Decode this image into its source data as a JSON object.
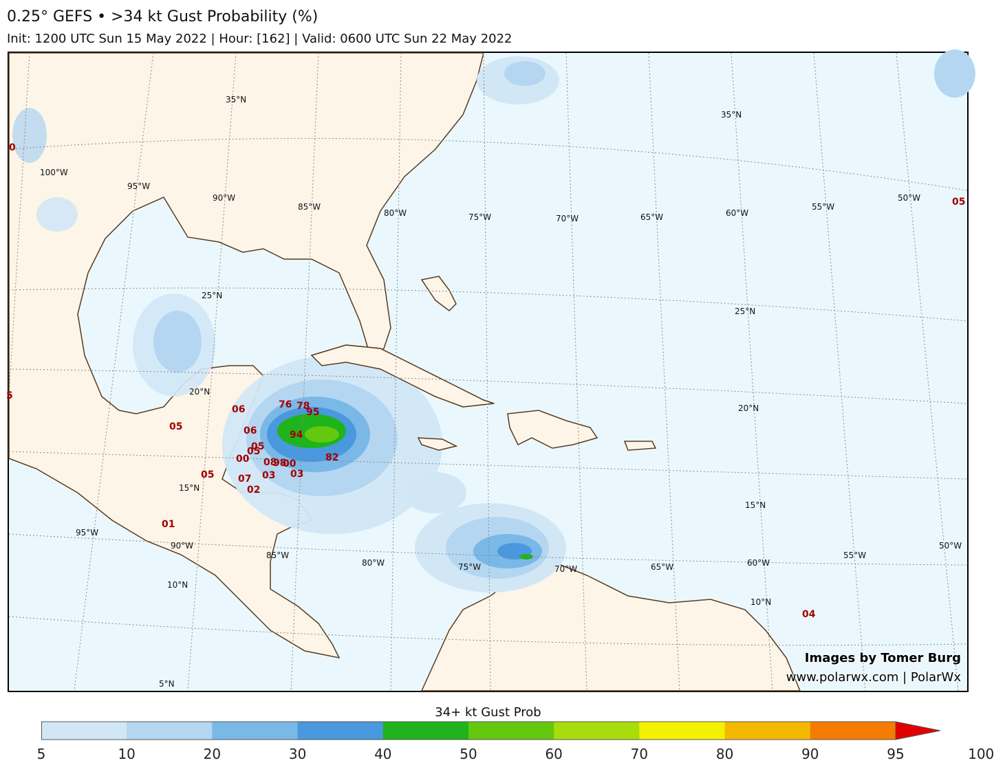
{
  "header": {
    "title": "0.25° GEFS • >34 kt Gust Probability (%)",
    "subtitle": "Init: 1200 UTC Sun 15 May 2022 | Hour: [162] | Valid: 0600 UTC Sun 22 May 2022"
  },
  "map": {
    "region": "Gulf of Mexico, Caribbean and western Atlantic",
    "colors": {
      "ocean": "#eaf8fd",
      "land": "#fdf5e8",
      "coast": "#5a3a1e",
      "grid": "#888888"
    },
    "lat_labels": [
      "35°N",
      "35°N",
      "25°N",
      "25°N",
      "20°N",
      "20°N",
      "15°N",
      "15°N",
      "10°N",
      "10°N",
      "5°N"
    ],
    "lon_labels": [
      "100°W",
      "95°W",
      "90°W",
      "85°W",
      "80°W",
      "75°W",
      "70°W",
      "65°W",
      "60°W",
      "55°W",
      "50°W",
      "95°W",
      "90°W",
      "85°W",
      "80°W",
      "75°W",
      "70°W",
      "65°W",
      "60°W",
      "55°W",
      "50°W"
    ],
    "max_labels": [
      "76",
      "78",
      "95",
      "94",
      "82",
      "06",
      "06",
      "05",
      "05",
      "00",
      "08",
      "98",
      "00",
      "07",
      "03",
      "03",
      "02",
      "05",
      "05",
      "01",
      "04",
      "05",
      "0",
      "5"
    ]
  },
  "credit": {
    "line1": "Images by Tomer Burg",
    "line2": "www.polarwx.com | PolarWx"
  },
  "colorbar": {
    "title": "34+ kt Gust Prob",
    "ticks": [
      "5",
      "10",
      "20",
      "30",
      "40",
      "50",
      "60",
      "70",
      "80",
      "90",
      "95",
      "100"
    ],
    "colors": [
      "#d2e7f6",
      "#b4d6f0",
      "#7ab8e8",
      "#4a98de",
      "#1fb31c",
      "#64c80f",
      "#a8dc0c",
      "#f2f200",
      "#f5b800",
      "#f57c00",
      "#e00000"
    ]
  }
}
